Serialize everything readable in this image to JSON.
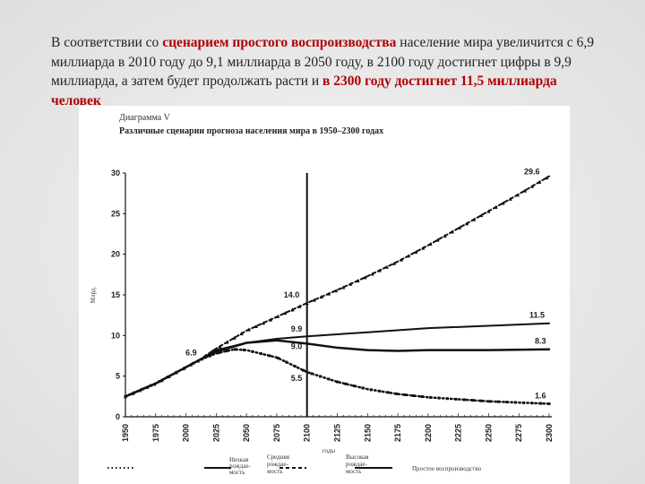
{
  "intro": {
    "p1": "В соответствии со ",
    "h1": "сценарием простого воспроизводства",
    "p2": " население мира увеличится с 6,9 миллиарда в 2010 году до 9,1 миллиарда в 2050 году, в 2100 году достигнет цифры в 9,9 миллиарда, а затем будет продолжать расти и ",
    "h2": "в 2300 году достигнет 11,5 миллиарда человек"
  },
  "chart_data": {
    "type": "line",
    "label": "Диаграмма V",
    "title": "Различные сценарии прогноза населения мира в 1950–2300 годах",
    "xlabel": "годы",
    "ylabel": "Млрд.",
    "xlim": [
      1950,
      2300
    ],
    "ylim": [
      0,
      30
    ],
    "xticks": [
      1950,
      1975,
      2000,
      2025,
      2050,
      2075,
      2100,
      2125,
      2150,
      2175,
      2200,
      2225,
      2250,
      2275,
      2300
    ],
    "yticks": [
      0,
      5,
      10,
      15,
      20,
      25,
      30
    ],
    "grid": false,
    "legend_position": "bottom",
    "reference_line_x": 2100,
    "series": [
      {
        "name": "Низкая рождаемость",
        "style": "dotted",
        "x": [
          1950,
          1975,
          2000,
          2010,
          2025,
          2040,
          2050,
          2075,
          2100,
          2125,
          2150,
          2175,
          2200,
          2250,
          2300
        ],
        "y": [
          2.5,
          4.1,
          6.1,
          6.9,
          7.8,
          8.3,
          8.2,
          7.3,
          5.5,
          4.3,
          3.4,
          2.8,
          2.4,
          1.9,
          1.6
        ]
      },
      {
        "name": "Средняя рождаемость",
        "style": "solid-markers",
        "x": [
          1950,
          1975,
          2000,
          2010,
          2025,
          2050,
          2075,
          2100,
          2125,
          2150,
          2175,
          2200,
          2250,
          2300
        ],
        "y": [
          2.5,
          4.1,
          6.1,
          6.9,
          8.0,
          9.1,
          9.4,
          9.0,
          8.5,
          8.2,
          8.1,
          8.2,
          8.2,
          8.3
        ]
      },
      {
        "name": "Высокая рождаемость",
        "style": "dashed-triangles",
        "x": [
          1950,
          1975,
          2000,
          2010,
          2025,
          2050,
          2075,
          2100,
          2125,
          2150,
          2175,
          2200,
          2225,
          2250,
          2275,
          2300
        ],
        "y": [
          2.5,
          4.1,
          6.1,
          6.9,
          8.4,
          10.6,
          12.3,
          14.0,
          15.6,
          17.3,
          19.1,
          21.1,
          23.2,
          25.3,
          27.4,
          29.6
        ]
      },
      {
        "name": "Простое воспроизводство",
        "style": "solid",
        "x": [
          1950,
          1975,
          2000,
          2010,
          2025,
          2050,
          2075,
          2100,
          2150,
          2200,
          2250,
          2300
        ],
        "y": [
          2.5,
          4.1,
          6.1,
          6.9,
          8.2,
          9.1,
          9.6,
          9.9,
          10.4,
          10.9,
          11.2,
          11.5
        ]
      }
    ],
    "annotations": [
      {
        "text": "6.9",
        "x": 2010,
        "y": 6.9
      },
      {
        "text": "14.0",
        "x": 2100,
        "y": 14.0
      },
      {
        "text": "9.9",
        "x": 2100,
        "y": 9.9
      },
      {
        "text": "9.0",
        "x": 2100,
        "y": 9.0
      },
      {
        "text": "5.5",
        "x": 2100,
        "y": 5.5
      },
      {
        "text": "29.6",
        "x": 2300,
        "y": 29.6
      },
      {
        "text": "11.5",
        "x": 2300,
        "y": 11.5
      },
      {
        "text": "8.3",
        "x": 2300,
        "y": 8.3
      },
      {
        "text": "1.6",
        "x": 2300,
        "y": 1.6
      }
    ],
    "legend_labels": [
      [
        "Низкая",
        "рождае-",
        "мость"
      ],
      [
        "Средняя",
        "рождае-",
        "мость"
      ],
      [
        "Высокая",
        "рождае-",
        "мость"
      ],
      [
        "Простое воспроизводство"
      ]
    ]
  }
}
